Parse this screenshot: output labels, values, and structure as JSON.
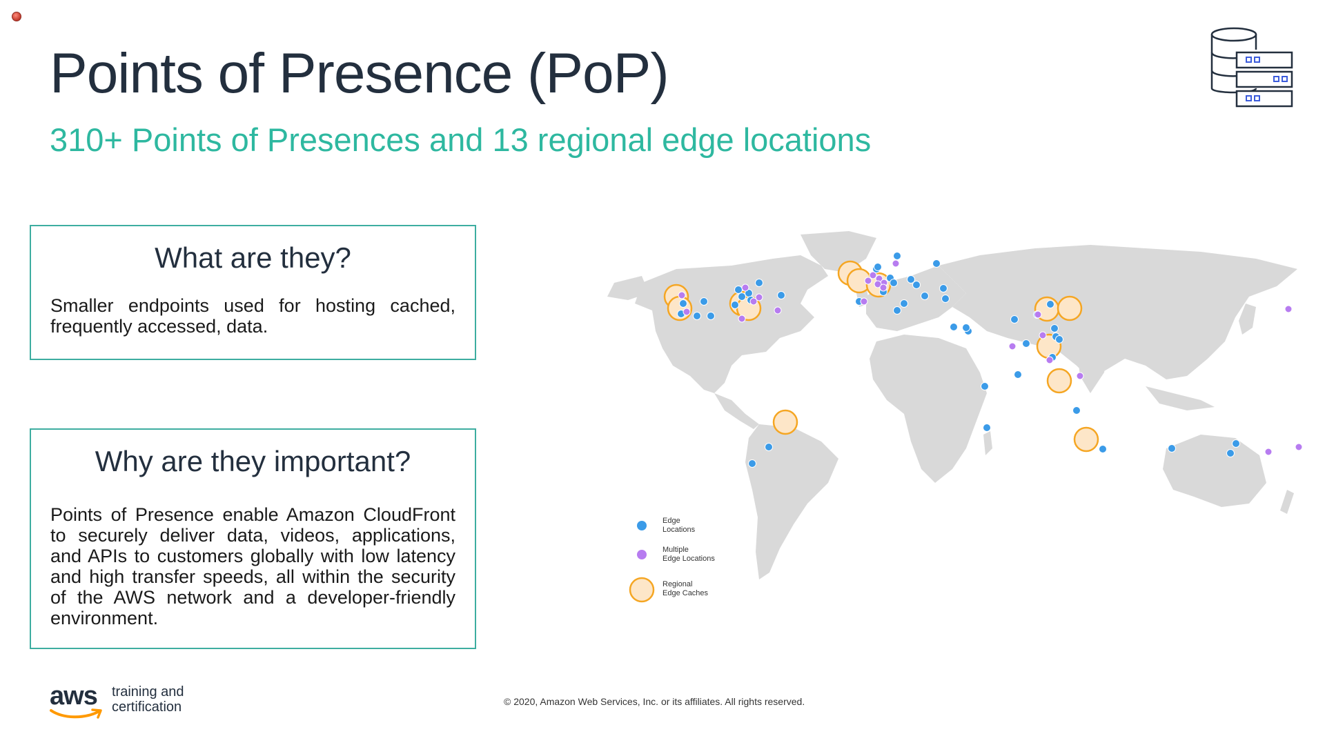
{
  "header": {
    "title": "Points of Presence (PoP)",
    "subtitle": "310+ Points of Presences and 13 regional edge locations"
  },
  "cards": [
    {
      "heading": "What are they?",
      "body": "Smaller endpoints used for hosting cached, frequently accessed, data."
    },
    {
      "heading": "Why are they important?",
      "body": "Points of Presence enable Amazon CloudFront to securely deliver data, videos, applications, and APIs to customers globally with low latency and high transfer speeds, all within the security of the AWS network and a developer-friendly environment."
    }
  ],
  "legend": {
    "edge_line1": "Edge",
    "edge_line2": "Locations",
    "multi_line1": "Multiple",
    "multi_line2": "Edge Locations",
    "regional_line1": "Regional",
    "regional_line2": "Edge Caches"
  },
  "colors": {
    "edge": "#3b9be8",
    "multi": "#b77cf0",
    "regional_fill": "#fde6c8",
    "regional_stroke": "#f5a623",
    "accent": "#2eb8a0",
    "land": "#d9d9d9"
  },
  "icons": {
    "header_icon": "database-server-icon",
    "status_icon": "record-indicator-icon"
  },
  "logo": {
    "brand": "aws",
    "tagline_line1": "training and",
    "tagline_line2": "certification"
  },
  "footer": {
    "copyright": "© 2020, Amazon Web Services, Inc. or its affiliates. All rights reserved."
  }
}
